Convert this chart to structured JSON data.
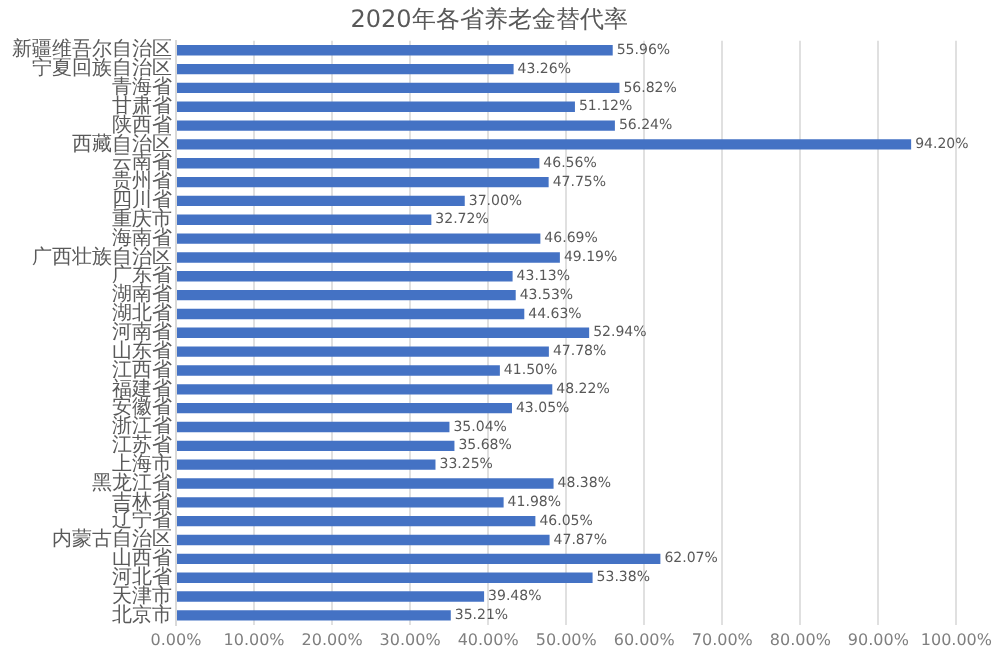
{
  "chart_data": {
    "type": "bar",
    "orientation": "horizontal",
    "title": "2020年各省养老金替代率",
    "categories": [
      "新疆维吾尔自治区",
      "宁夏回族自治区",
      "青海省",
      "甘肃省",
      "陕西省",
      "西藏自治区",
      "云南省",
      "贵州省",
      "四川省",
      "重庆市",
      "海南省",
      "广西壮族自治区",
      "广东省",
      "湖南省",
      "湖北省",
      "河南省",
      "山东省",
      "江西省",
      "福建省",
      "安徽省",
      "浙江省",
      "江苏省",
      "上海市",
      "黑龙江省",
      "吉林省",
      "辽宁省",
      "内蒙古自治区",
      "山西省",
      "河北省",
      "天津市",
      "北京市"
    ],
    "values": [
      55.96,
      43.26,
      56.82,
      51.12,
      56.24,
      94.2,
      46.56,
      47.75,
      37.0,
      32.72,
      46.69,
      49.19,
      43.13,
      43.53,
      44.63,
      52.94,
      47.78,
      41.5,
      48.22,
      43.05,
      35.04,
      35.68,
      33.25,
      48.38,
      41.98,
      46.05,
      47.87,
      62.07,
      53.38,
      39.48,
      35.21
    ],
    "value_labels": [
      "55.96%",
      "43.26%",
      "56.82%",
      "51.12%",
      "56.24%",
      "94.20%",
      "46.56%",
      "47.75%",
      "37.00%",
      "32.72%",
      "46.69%",
      "49.19%",
      "43.13%",
      "43.53%",
      "44.63%",
      "52.94%",
      "47.78%",
      "41.50%",
      "48.22%",
      "43.05%",
      "35.04%",
      "35.68%",
      "33.25%",
      "48.38%",
      "41.98%",
      "46.05%",
      "47.87%",
      "62.07%",
      "53.38%",
      "39.48%",
      "35.21%"
    ],
    "color": "#4472c4",
    "xlim": [
      0,
      100
    ],
    "xticks": [
      {
        "value": 0,
        "label": "0.00%"
      },
      {
        "value": 10,
        "label": "10.00%"
      },
      {
        "value": 20,
        "label": "20.00%"
      },
      {
        "value": 30,
        "label": "30.00%"
      },
      {
        "value": 40,
        "label": "40.00%"
      },
      {
        "value": 50,
        "label": "50.00%"
      },
      {
        "value": 60,
        "label": "60.00%"
      },
      {
        "value": 70,
        "label": "70.00%"
      },
      {
        "value": 80,
        "label": "80.00%"
      },
      {
        "value": 90,
        "label": "90.00%"
      },
      {
        "value": 100,
        "label": "100.00%"
      }
    ],
    "grid": "x",
    "legend": false
  }
}
